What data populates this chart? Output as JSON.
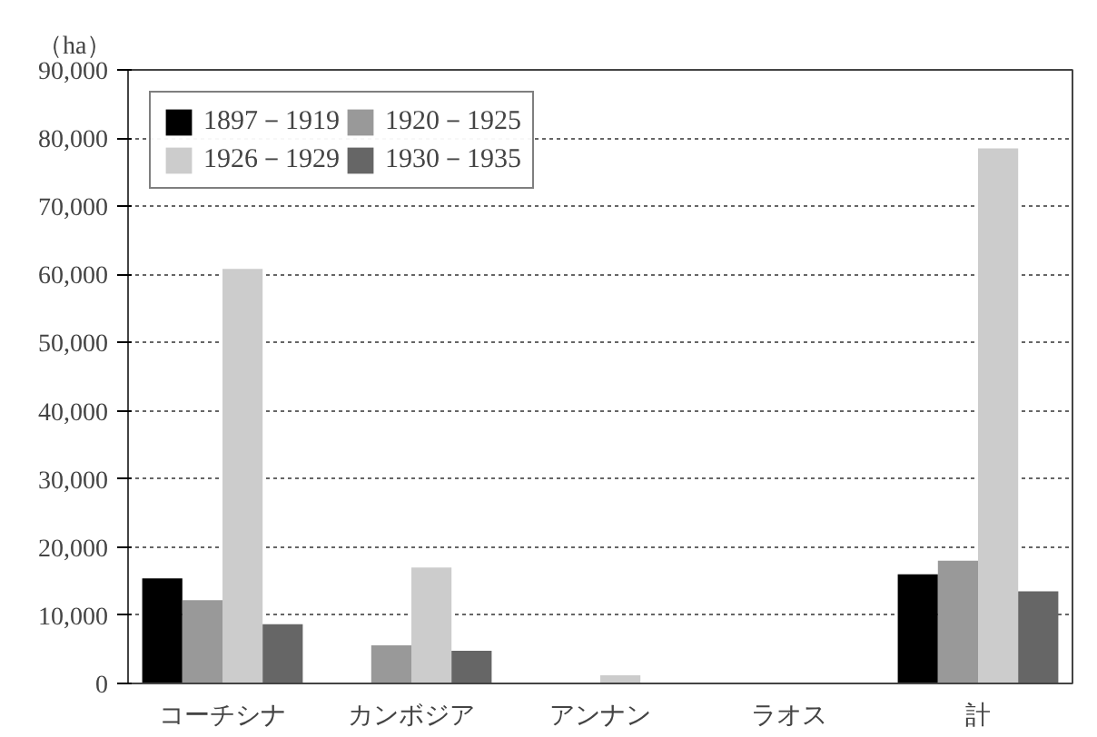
{
  "chart_data": {
    "type": "bar",
    "ylabel": "（ha）",
    "categories": [
      "コーチシナ",
      "カンボジア",
      "アンナン",
      "ラオス",
      "計"
    ],
    "series": [
      {
        "name": "1897－1919",
        "color": "#000000",
        "values": [
          15400,
          0,
          0,
          0,
          16000
        ]
      },
      {
        "name": "1920－1925",
        "color": "#999999",
        "values": [
          12200,
          5600,
          0,
          0,
          18000
        ]
      },
      {
        "name": "1926－1929",
        "color": "#cccccc",
        "values": [
          60800,
          17000,
          1200,
          0,
          78500
        ]
      },
      {
        "name": "1930－1935",
        "color": "#666666",
        "values": [
          8700,
          4800,
          0,
          0,
          13500
        ]
      }
    ],
    "ylim": [
      0,
      90000
    ],
    "yticks": [
      {
        "value": 0,
        "label": "0"
      },
      {
        "value": 10000,
        "label": "10,000"
      },
      {
        "value": 20000,
        "label": "20,000"
      },
      {
        "value": 30000,
        "label": "30,000"
      },
      {
        "value": 40000,
        "label": "40,000"
      },
      {
        "value": 50000,
        "label": "50,000"
      },
      {
        "value": 60000,
        "label": "60,000"
      },
      {
        "value": 70000,
        "label": "70,000"
      },
      {
        "value": 80000,
        "label": "80,000"
      },
      {
        "value": 90000,
        "label": "90,000"
      }
    ],
    "grid": "y",
    "legend": "top left"
  }
}
